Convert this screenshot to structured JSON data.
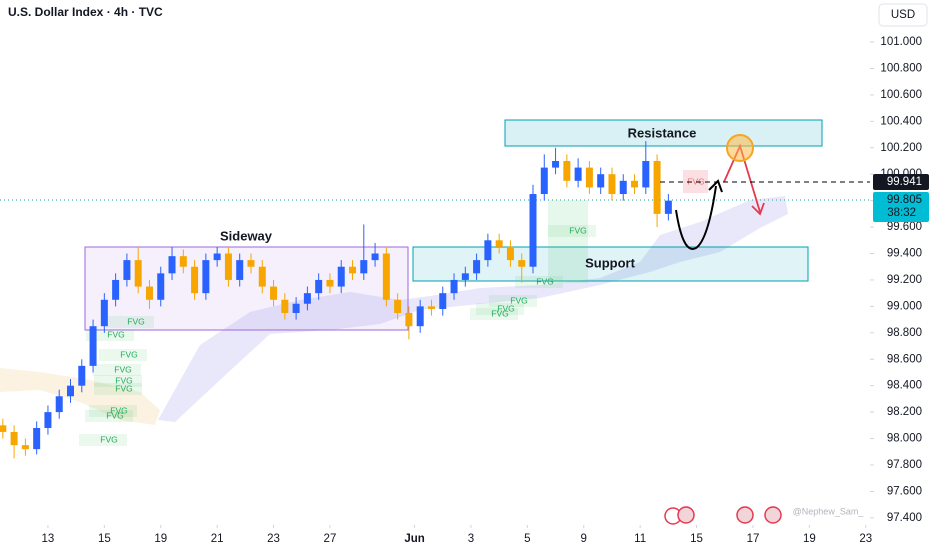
{
  "chart_data": {
    "type": "candlestick",
    "title": "U.S. Dollar Index · 4h · TVC",
    "currency": "USD",
    "x": [
      -1.6,
      -1.2,
      -0.8,
      -0.4,
      0.0,
      0.4,
      0.8,
      1.2,
      1.6,
      2.0,
      2.4,
      2.8,
      3.2,
      3.6,
      4.0,
      4.4,
      4.8,
      5.2,
      5.6,
      6.0,
      6.4,
      6.8,
      7.2,
      7.6,
      8.0,
      8.4,
      8.8,
      9.2,
      9.6,
      10.0,
      10.4,
      10.8,
      11.2,
      11.6,
      12.0,
      12.4,
      12.8,
      13.2,
      13.6,
      14.0,
      14.4,
      14.8,
      15.2,
      15.6,
      16.0,
      16.4,
      16.8,
      17.2,
      17.6,
      18.0,
      18.4,
      18.8,
      19.2,
      19.6,
      20.0,
      20.4,
      20.8,
      21.2,
      21.6,
      22.0
    ],
    "open": [
      98.1,
      98.05,
      97.95,
      97.92,
      98.08,
      98.2,
      98.32,
      98.4,
      98.55,
      98.85,
      99.05,
      99.2,
      99.35,
      99.15,
      99.05,
      99.25,
      99.38,
      99.3,
      99.1,
      99.35,
      99.4,
      99.2,
      99.35,
      99.3,
      99.15,
      99.05,
      98.95,
      99.02,
      99.1,
      99.2,
      99.15,
      99.3,
      99.25,
      99.35,
      99.4,
      99.05,
      98.95,
      98.85,
      99.0,
      98.98,
      99.1,
      99.2,
      99.25,
      99.35,
      99.5,
      99.45,
      99.35,
      99.3,
      99.85,
      100.05,
      100.1,
      99.95,
      100.05,
      99.9,
      100.0,
      99.85,
      99.95,
      99.9,
      100.1,
      99.7
    ],
    "high": [
      98.15,
      98.1,
      98.0,
      98.13,
      98.25,
      98.37,
      98.45,
      98.6,
      98.9,
      99.1,
      99.25,
      99.4,
      99.45,
      99.2,
      99.3,
      99.45,
      99.43,
      99.35,
      99.4,
      99.45,
      99.45,
      99.4,
      99.4,
      99.35,
      99.2,
      99.1,
      99.07,
      99.15,
      99.25,
      99.25,
      99.35,
      99.35,
      99.62,
      99.48,
      99.45,
      99.1,
      99.0,
      99.05,
      99.05,
      99.15,
      99.25,
      99.3,
      99.4,
      99.55,
      99.55,
      99.5,
      99.4,
      99.92,
      100.15,
      100.2,
      100.15,
      100.12,
      100.1,
      100.05,
      100.05,
      100.0,
      100.0,
      100.25,
      100.15,
      99.85
    ],
    "low": [
      98.0,
      97.85,
      97.87,
      97.88,
      98.03,
      98.15,
      98.27,
      98.35,
      98.5,
      98.8,
      99.0,
      99.15,
      99.1,
      98.98,
      99.0,
      99.2,
      99.25,
      99.05,
      99.05,
      99.3,
      99.15,
      99.15,
      99.25,
      99.1,
      99.0,
      98.9,
      98.9,
      98.97,
      99.05,
      99.1,
      99.1,
      99.2,
      99.2,
      99.3,
      99.0,
      98.9,
      98.75,
      98.8,
      98.93,
      98.93,
      99.05,
      99.15,
      99.2,
      99.3,
      99.4,
      99.3,
      99.18,
      99.25,
      99.8,
      100.0,
      99.9,
      99.9,
      99.85,
      99.85,
      99.8,
      99.8,
      99.85,
      99.85,
      99.6,
      99.65
    ],
    "close": [
      98.05,
      97.95,
      97.92,
      98.08,
      98.2,
      98.32,
      98.4,
      98.55,
      98.85,
      99.05,
      99.2,
      99.35,
      99.15,
      99.05,
      99.25,
      99.38,
      99.3,
      99.1,
      99.35,
      99.4,
      99.2,
      99.35,
      99.3,
      99.15,
      99.05,
      98.95,
      99.02,
      99.1,
      99.2,
      99.15,
      99.3,
      99.25,
      99.35,
      99.4,
      99.05,
      98.95,
      98.85,
      99.0,
      98.98,
      99.1,
      99.2,
      99.25,
      99.35,
      99.5,
      99.45,
      99.35,
      99.3,
      99.85,
      100.05,
      100.1,
      99.95,
      100.05,
      99.9,
      100.0,
      99.85,
      99.95,
      99.9,
      100.1,
      99.7,
      99.8
    ],
    "up_color": "#2962ff",
    "down_color": "#f7a600",
    "xlim": [
      -1.7,
      29.15
    ],
    "xticks": [
      {
        "value": 0,
        "label": "13"
      },
      {
        "value": 2,
        "label": "15"
      },
      {
        "value": 4,
        "label": "19"
      },
      {
        "value": 6,
        "label": "21"
      },
      {
        "value": 8,
        "label": "23"
      },
      {
        "value": 10,
        "label": "27"
      },
      {
        "value": 13,
        "label": "Jun"
      },
      {
        "value": 15,
        "label": "3"
      },
      {
        "value": 17,
        "label": "5"
      },
      {
        "value": 19,
        "label": "9"
      },
      {
        "value": 21,
        "label": "11"
      },
      {
        "value": 23,
        "label": "15"
      },
      {
        "value": 25,
        "label": "17"
      },
      {
        "value": 27,
        "label": "19"
      },
      {
        "value": 29,
        "label": "23"
      }
    ],
    "ylim": [
      97.346,
      101.318
    ],
    "yticks": [
      {
        "value": 97.4,
        "label": "97.400"
      },
      {
        "value": 97.6,
        "label": "97.600"
      },
      {
        "value": 97.8,
        "label": "97.800"
      },
      {
        "value": 98.0,
        "label": "98.000"
      },
      {
        "value": 98.2,
        "label": "98.200"
      },
      {
        "value": 98.4,
        "label": "98.400"
      },
      {
        "value": 98.6,
        "label": "98.600"
      },
      {
        "value": 98.8,
        "label": "98.800"
      },
      {
        "value": 99.0,
        "label": "99.000"
      },
      {
        "value": 99.2,
        "label": "99.200"
      },
      {
        "value": 99.4,
        "label": "99.400"
      },
      {
        "value": 99.6,
        "label": "99.600"
      },
      {
        "value": 99.8,
        "label": "99.800"
      },
      {
        "value": 100.0,
        "label": "100.000"
      },
      {
        "value": 100.2,
        "label": "100.200"
      },
      {
        "value": 100.4,
        "label": "100.400"
      },
      {
        "value": 100.6,
        "label": "100.600"
      },
      {
        "value": 100.8,
        "label": "100.800"
      },
      {
        "value": 101.0,
        "label": "101.000"
      }
    ],
    "reference_price": 99.941,
    "last_price": 99.805,
    "countdown": "38:32",
    "annotations": {
      "resistance": "Resistance",
      "support": "Support",
      "sideway": "Sideway",
      "fvg": [
        "FVG",
        "FVG",
        "FVG",
        "FVG",
        "FVG",
        "FVG",
        "FVG",
        "FVG",
        "FVG",
        "FVG",
        "FVG",
        "FVG",
        "FVG",
        "FVG",
        "FVG"
      ]
    },
    "watermark": "@Nephew_Sam_"
  }
}
